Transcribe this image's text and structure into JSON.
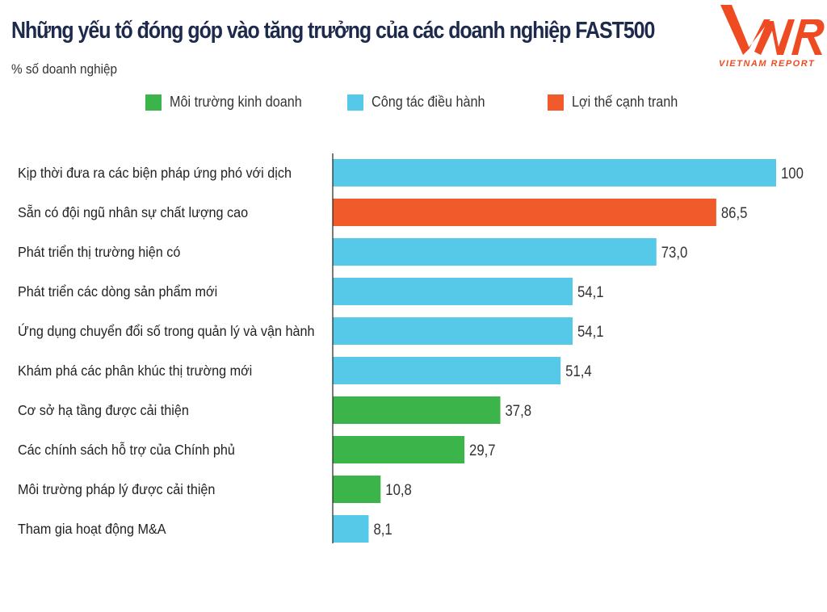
{
  "header": {
    "title": "Những yếu tố đóng góp vào tăng trưởng của các doanh nghiệp FAST500",
    "subtitle": "% số doanh nghiệp"
  },
  "logo": {
    "mark": "VNR",
    "text": "VIETNAM REPORT",
    "color": "#EE4B23"
  },
  "colors": {
    "Môi trường kinh doanh": "#3BB54A",
    "Công tác điều hành": "#56C8E8",
    "Lợi thế cạnh tranh": "#F15A2B"
  },
  "chart_data": {
    "type": "bar",
    "orientation": "horizontal",
    "title": "Những yếu tố đóng góp vào tăng trưởng của các doanh nghiệp FAST500",
    "ylabel": "% số doanh nghiệp",
    "xlim": [
      0,
      100
    ],
    "grid": false,
    "legend_position": "top",
    "legend": [
      "Môi trường kinh doanh",
      "Công tác điều hành",
      "Lợi thế cạnh tranh"
    ],
    "categories": [
      "Kịp thời đưa ra các biện pháp ứng phó với dịch",
      "Sẵn có đội ngũ nhân sự chất lượng cao",
      "Phát triển thị trường hiện có",
      "Phát triển các dòng sản phẩm mới",
      "Ứng dụng chuyển đổi số trong quản lý và vận hành",
      "Khám phá các phân khúc thị trường mới",
      "Cơ sở hạ tầng được cải thiện",
      "Các chính sách hỗ trợ của Chính phủ",
      "Môi trường pháp lý được cải thiện",
      "Tham gia hoạt động M&A"
    ],
    "values": [
      100,
      86.5,
      73.0,
      54.1,
      54.1,
      51.4,
      37.8,
      29.7,
      10.8,
      8.1
    ],
    "value_labels": [
      "100",
      "86,5",
      "73,0",
      "54,1",
      "54,1",
      "51,4",
      "37,8",
      "29,7",
      "10,8",
      "8,1"
    ],
    "groups": [
      "Công tác điều hành",
      "Lợi thế cạnh tranh",
      "Công tác điều hành",
      "Công tác điều hành",
      "Công tác điều hành",
      "Công tác điều hành",
      "Môi trường kinh doanh",
      "Môi trường kinh doanh",
      "Môi trường kinh doanh",
      "Công tác điều hành"
    ]
  }
}
